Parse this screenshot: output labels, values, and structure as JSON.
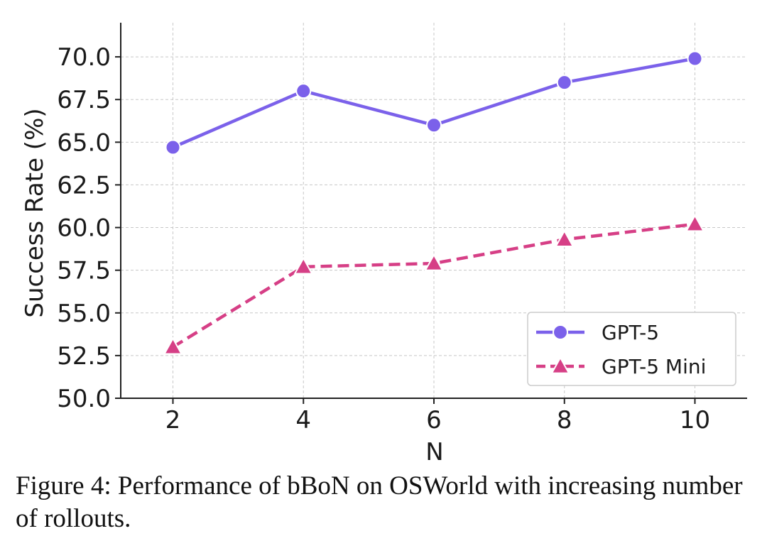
{
  "chart_data": {
    "type": "line",
    "x": [
      2,
      4,
      6,
      8,
      10
    ],
    "series": [
      {
        "name": "GPT-5",
        "values": [
          64.7,
          68.0,
          66.0,
          68.5,
          69.9
        ],
        "color": "#7b61ea",
        "marker": "circle",
        "linestyle": "solid"
      },
      {
        "name": "GPT-5 Mini",
        "values": [
          53.0,
          57.7,
          57.9,
          59.3,
          60.2
        ],
        "color": "#d63f86",
        "marker": "triangle",
        "linestyle": "dashed"
      }
    ],
    "xlabel": "N",
    "ylabel": "Success Rate (%)",
    "xticks": [
      "2",
      "4",
      "6",
      "8",
      "10"
    ],
    "yticks": [
      "50.0",
      "52.5",
      "55.0",
      "57.5",
      "60.0",
      "62.5",
      "65.0",
      "67.5",
      "70.0"
    ],
    "ylim": [
      50,
      72
    ],
    "xlim": [
      1.2,
      10.8
    ],
    "grid": true,
    "legend_position": "lower-right"
  },
  "caption": "Figure 4: Performance of bBoN on OSWorld with increasing number of rollouts."
}
